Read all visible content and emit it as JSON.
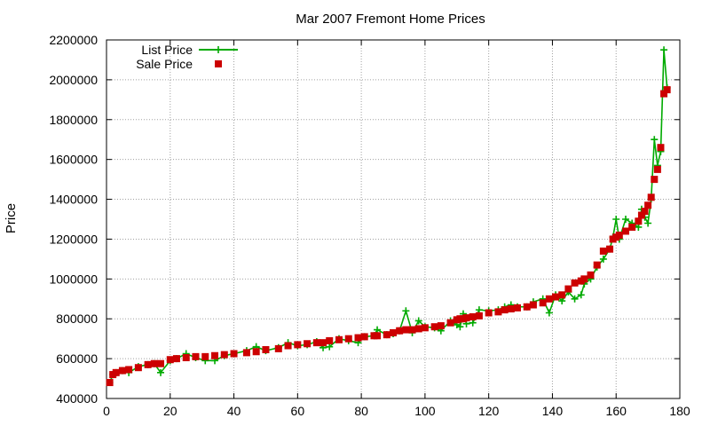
{
  "chart_data": {
    "type": "line",
    "title": "Mar 2007 Fremont Home Prices",
    "xlabel": "",
    "ylabel": "Price",
    "xlim": [
      0,
      180
    ],
    "ylim": [
      400000,
      2200000
    ],
    "x_ticks": [
      0,
      20,
      40,
      60,
      80,
      100,
      120,
      140,
      160,
      180
    ],
    "y_ticks": [
      400000,
      600000,
      800000,
      1000000,
      1200000,
      1400000,
      1600000,
      1800000,
      2000000,
      2200000
    ],
    "grid": true,
    "legend_position": "top-left",
    "colors": {
      "list": "#00aa00",
      "sale": "#cc0000",
      "grid": "#a0a0a0"
    },
    "series": [
      {
        "name": "List Price",
        "style": "linespoints",
        "points": [
          [
            1,
            480000
          ],
          [
            2,
            520000
          ],
          [
            3,
            530000
          ],
          [
            5,
            540000
          ],
          [
            7,
            530000
          ],
          [
            10,
            560000
          ],
          [
            13,
            570000
          ],
          [
            15,
            575000
          ],
          [
            17,
            530000
          ],
          [
            20,
            590000
          ],
          [
            22,
            600000
          ],
          [
            25,
            625000
          ],
          [
            28,
            605000
          ],
          [
            31,
            590000
          ],
          [
            34,
            590000
          ],
          [
            37,
            615000
          ],
          [
            40,
            625000
          ],
          [
            44,
            640000
          ],
          [
            47,
            660000
          ],
          [
            50,
            640000
          ],
          [
            54,
            655000
          ],
          [
            57,
            680000
          ],
          [
            60,
            665000
          ],
          [
            63,
            670000
          ],
          [
            66,
            685000
          ],
          [
            68,
            655000
          ],
          [
            70,
            660000
          ],
          [
            73,
            700000
          ],
          [
            76,
            690000
          ],
          [
            79,
            680000
          ],
          [
            81,
            710000
          ],
          [
            84,
            715000
          ],
          [
            85,
            745000
          ],
          [
            88,
            720000
          ],
          [
            90,
            725000
          ],
          [
            92,
            740000
          ],
          [
            94,
            840000
          ],
          [
            96,
            730000
          ],
          [
            98,
            790000
          ],
          [
            100,
            760000
          ],
          [
            103,
            755000
          ],
          [
            105,
            740000
          ],
          [
            108,
            790000
          ],
          [
            110,
            770000
          ],
          [
            111,
            760000
          ],
          [
            112,
            825000
          ],
          [
            113,
            775000
          ],
          [
            115,
            780000
          ],
          [
            117,
            845000
          ],
          [
            120,
            840000
          ],
          [
            123,
            845000
          ],
          [
            125,
            860000
          ],
          [
            127,
            870000
          ],
          [
            129,
            860000
          ],
          [
            132,
            860000
          ],
          [
            134,
            885000
          ],
          [
            137,
            900000
          ],
          [
            139,
            830000
          ],
          [
            141,
            920000
          ],
          [
            143,
            890000
          ],
          [
            145,
            935000
          ],
          [
            147,
            900000
          ],
          [
            149,
            920000
          ],
          [
            150,
            975000
          ],
          [
            152,
            1000000
          ],
          [
            154,
            1060000
          ],
          [
            156,
            1100000
          ],
          [
            158,
            1150000
          ],
          [
            159,
            1210000
          ],
          [
            160,
            1300000
          ],
          [
            161,
            1200000
          ],
          [
            163,
            1300000
          ],
          [
            165,
            1280000
          ],
          [
            167,
            1260000
          ],
          [
            168,
            1350000
          ],
          [
            169,
            1310000
          ],
          [
            170,
            1280000
          ],
          [
            171,
            1400000
          ],
          [
            172,
            1700000
          ],
          [
            173,
            1570000
          ],
          [
            174,
            1640000
          ],
          [
            175,
            2150000
          ],
          [
            176,
            1960000
          ]
        ]
      },
      {
        "name": "Sale Price",
        "style": "points",
        "points": [
          [
            1,
            480000
          ],
          [
            2,
            520000
          ],
          [
            3,
            530000
          ],
          [
            5,
            540000
          ],
          [
            7,
            545000
          ],
          [
            10,
            555000
          ],
          [
            13,
            570000
          ],
          [
            15,
            575000
          ],
          [
            17,
            575000
          ],
          [
            20,
            595000
          ],
          [
            22,
            600000
          ],
          [
            25,
            605000
          ],
          [
            28,
            610000
          ],
          [
            31,
            610000
          ],
          [
            34,
            615000
          ],
          [
            37,
            620000
          ],
          [
            40,
            625000
          ],
          [
            44,
            630000
          ],
          [
            47,
            635000
          ],
          [
            50,
            645000
          ],
          [
            54,
            650000
          ],
          [
            57,
            665000
          ],
          [
            60,
            670000
          ],
          [
            63,
            675000
          ],
          [
            66,
            680000
          ],
          [
            68,
            680000
          ],
          [
            70,
            690000
          ],
          [
            73,
            695000
          ],
          [
            76,
            700000
          ],
          [
            79,
            705000
          ],
          [
            81,
            710000
          ],
          [
            84,
            715000
          ],
          [
            85,
            715000
          ],
          [
            88,
            720000
          ],
          [
            90,
            730000
          ],
          [
            92,
            740000
          ],
          [
            94,
            745000
          ],
          [
            96,
            745000
          ],
          [
            98,
            750000
          ],
          [
            100,
            755000
          ],
          [
            103,
            760000
          ],
          [
            105,
            765000
          ],
          [
            108,
            780000
          ],
          [
            110,
            795000
          ],
          [
            111,
            800000
          ],
          [
            112,
            800000
          ],
          [
            113,
            805000
          ],
          [
            115,
            810000
          ],
          [
            117,
            815000
          ],
          [
            120,
            830000
          ],
          [
            123,
            835000
          ],
          [
            125,
            845000
          ],
          [
            127,
            850000
          ],
          [
            129,
            855000
          ],
          [
            132,
            860000
          ],
          [
            134,
            870000
          ],
          [
            137,
            880000
          ],
          [
            139,
            900000
          ],
          [
            141,
            910000
          ],
          [
            143,
            920000
          ],
          [
            145,
            950000
          ],
          [
            147,
            980000
          ],
          [
            149,
            990000
          ],
          [
            150,
            1000000
          ],
          [
            152,
            1020000
          ],
          [
            154,
            1070000
          ],
          [
            156,
            1140000
          ],
          [
            158,
            1150000
          ],
          [
            159,
            1200000
          ],
          [
            160,
            1210000
          ],
          [
            161,
            1220000
          ],
          [
            163,
            1240000
          ],
          [
            165,
            1260000
          ],
          [
            167,
            1290000
          ],
          [
            168,
            1320000
          ],
          [
            169,
            1340000
          ],
          [
            170,
            1370000
          ],
          [
            171,
            1410000
          ],
          [
            172,
            1500000
          ],
          [
            173,
            1550000
          ],
          [
            174,
            1660000
          ],
          [
            175,
            1930000
          ],
          [
            176,
            1950000
          ]
        ]
      }
    ]
  }
}
